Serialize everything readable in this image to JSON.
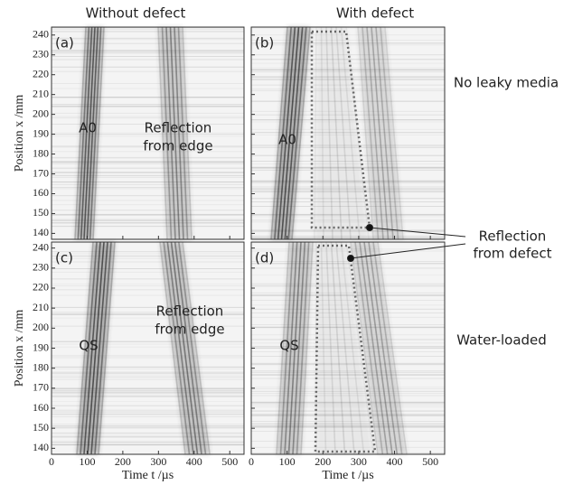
{
  "column_titles": [
    "Without defect",
    "With defect"
  ],
  "row_labels": [
    "No leaky media",
    "Water-loaded"
  ],
  "callout": [
    "Reflection",
    "from defect"
  ],
  "chart_data": [
    {
      "type": "image",
      "panel": "(a)",
      "ylabel": "Position x /mm",
      "xlim": [
        0,
        540
      ],
      "ylim": [
        137,
        244
      ],
      "xticks": [
        0,
        100,
        200,
        300,
        400,
        500
      ],
      "yticks": [
        140,
        150,
        160,
        170,
        180,
        190,
        200,
        210,
        220,
        230,
        240
      ],
      "annotations": [
        [
          "A0"
        ],
        [
          "Reflection",
          "from edge"
        ]
      ]
    },
    {
      "type": "image",
      "panel": "(b)",
      "xlim": [
        0,
        540
      ],
      "ylim": [
        137,
        244
      ],
      "xticks": [
        0,
        100,
        200,
        300,
        400,
        500
      ],
      "yticks": [
        140,
        150,
        160,
        170,
        180,
        190,
        200,
        210,
        220,
        230,
        240
      ],
      "annotations": [
        [
          "A0"
        ]
      ]
    },
    {
      "type": "image",
      "panel": "(c)",
      "ylabel": "Position x /mm",
      "xlabel": "Time t /µs",
      "xlim": [
        0,
        540
      ],
      "ylim": [
        137,
        243
      ],
      "xticks": [
        0,
        100,
        200,
        300,
        400,
        500
      ],
      "yticks": [
        140,
        150,
        160,
        170,
        180,
        190,
        200,
        210,
        220,
        230,
        240
      ],
      "annotations": [
        [
          "QS"
        ],
        [
          "Reflection",
          "from edge"
        ]
      ]
    },
    {
      "type": "image",
      "panel": "(d)",
      "xlabel": "Time t /µs",
      "xlim": [
        0,
        540
      ],
      "ylim": [
        137,
        243
      ],
      "xticks": [
        0,
        100,
        200,
        300,
        400,
        500
      ],
      "yticks": [
        140,
        150,
        160,
        170,
        180,
        190,
        200,
        210,
        220,
        230,
        240
      ],
      "annotations": [
        [
          "QS"
        ]
      ]
    }
  ]
}
